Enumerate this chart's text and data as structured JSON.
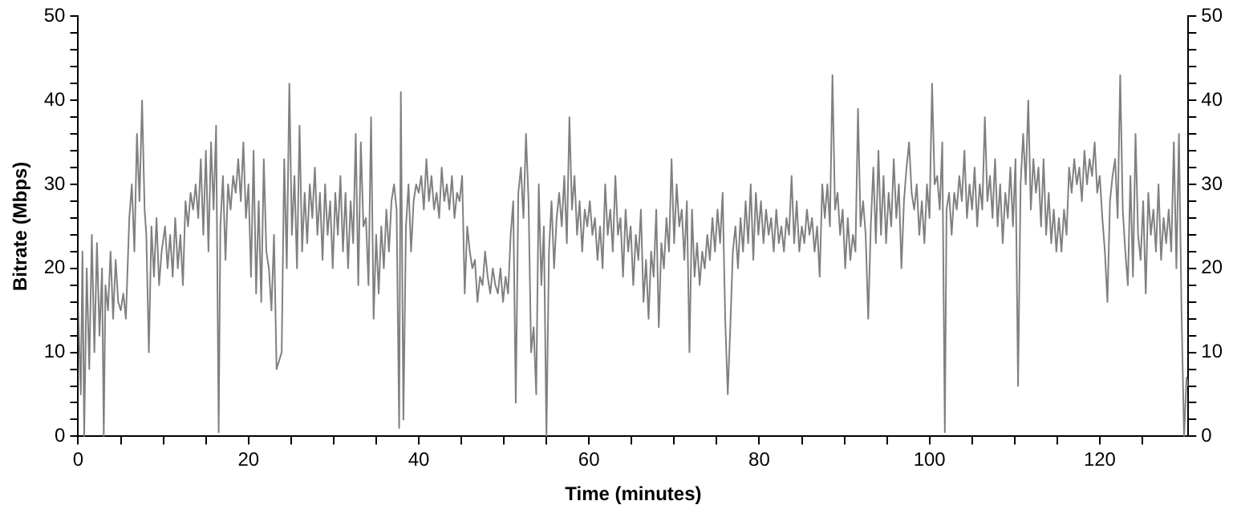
{
  "chart_data": {
    "type": "line",
    "xlabel": "Time (minutes)",
    "ylabel": "Bitrate (Mbps)",
    "xlim": [
      0,
      130.4
    ],
    "ylim": [
      0,
      50
    ],
    "y2lim": [
      0,
      50
    ],
    "xticks": [
      0,
      {
        "value": 5,
        "label": null
      },
      20,
      {
        "value": 10,
        "label": null
      },
      {
        "value": 15,
        "label": null
      },
      {
        "value": 25,
        "label": null
      },
      {
        "value": 30,
        "label": null
      },
      {
        "value": 35,
        "label": null
      },
      40,
      {
        "value": 45,
        "label": null
      },
      {
        "value": 50,
        "label": null
      },
      {
        "value": 55,
        "label": null
      },
      60,
      {
        "value": 65,
        "label": null
      },
      {
        "value": 70,
        "label": null
      },
      {
        "value": 75,
        "label": null
      },
      80,
      {
        "value": 85,
        "label": null
      },
      {
        "value": 90,
        "label": null
      },
      {
        "value": 95,
        "label": null
      },
      100,
      {
        "value": 105,
        "label": null
      },
      {
        "value": 110,
        "label": null
      },
      {
        "value": 115,
        "label": null
      },
      120,
      {
        "value": 125,
        "label": null
      }
    ],
    "yticks": [
      0,
      {
        "value": 2,
        "label": null
      },
      {
        "value": 4,
        "label": null
      },
      {
        "value": 6,
        "label": null
      },
      {
        "value": 8,
        "label": null
      },
      10,
      {
        "value": 12,
        "label": null
      },
      {
        "value": 14,
        "label": null
      },
      {
        "value": 16,
        "label": null
      },
      {
        "value": 18,
        "label": null
      },
      20,
      {
        "value": 22,
        "label": null
      },
      {
        "value": 24,
        "label": null
      },
      {
        "value": 26,
        "label": null
      },
      {
        "value": 28,
        "label": null
      },
      30,
      {
        "value": 32,
        "label": null
      },
      {
        "value": 34,
        "label": null
      },
      {
        "value": 36,
        "label": null
      },
      {
        "value": 38,
        "label": null
      },
      40,
      {
        "value": 42,
        "label": null
      },
      {
        "value": 44,
        "label": null
      },
      {
        "value": 46,
        "label": null
      },
      {
        "value": 48,
        "label": null
      },
      50
    ],
    "y2ticks": [
      0,
      {
        "value": 2,
        "label": null
      },
      {
        "value": 4,
        "label": null
      },
      {
        "value": 6,
        "label": null
      },
      {
        "value": 8,
        "label": null
      },
      10,
      {
        "value": 12,
        "label": null
      },
      {
        "value": 14,
        "label": null
      },
      {
        "value": 16,
        "label": null
      },
      {
        "value": 18,
        "label": null
      },
      20,
      {
        "value": 22,
        "label": null
      },
      {
        "value": 24,
        "label": null
      },
      {
        "value": 26,
        "label": null
      },
      {
        "value": 28,
        "label": null
      },
      30,
      {
        "value": 32,
        "label": null
      },
      {
        "value": 34,
        "label": null
      },
      {
        "value": 36,
        "label": null
      },
      {
        "value": 38,
        "label": null
      },
      40,
      {
        "value": 42,
        "label": null
      },
      {
        "value": 44,
        "label": null
      },
      {
        "value": 46,
        "label": null
      },
      {
        "value": 48,
        "label": null
      },
      50
    ],
    "grid": false,
    "legend": false,
    "marker": "none",
    "line_style": "solid",
    "series": [
      {
        "color": "#808080",
        "x": [
          0,
          0.3,
          0.5,
          0.7,
          1,
          1.3,
          1.6,
          1.9,
          2.2,
          2.5,
          2.8,
          3,
          3.2,
          3.5,
          3.8,
          4.1,
          4.4,
          4.7,
          5,
          5.3,
          5.6,
          6,
          6.3,
          6.6,
          6.9,
          7.2,
          7.5,
          7.8,
          8,
          8.3,
          8.6,
          8.9,
          9.2,
          9.5,
          9.8,
          10.2,
          10.5,
          10.8,
          11.1,
          11.4,
          11.7,
          12,
          12.3,
          12.6,
          12.9,
          13.2,
          13.5,
          13.8,
          14.1,
          14.4,
          14.7,
          15,
          15.3,
          15.6,
          15.9,
          16.2,
          16.5,
          16.7,
          17,
          17.3,
          17.6,
          17.9,
          18.2,
          18.5,
          18.8,
          19.1,
          19.4,
          19.7,
          20,
          20.3,
          20.6,
          20.9,
          21.2,
          21.5,
          21.8,
          22.1,
          22.4,
          22.7,
          23,
          23.3,
          23.6,
          23.9,
          24.2,
          24.5,
          24.8,
          25.1,
          25.4,
          25.7,
          26,
          26.3,
          26.6,
          26.9,
          27.2,
          27.5,
          27.8,
          28.1,
          28.4,
          28.7,
          29,
          29.3,
          29.6,
          29.9,
          30.2,
          30.5,
          30.8,
          31.1,
          31.4,
          31.7,
          32,
          32.3,
          32.6,
          32.9,
          33.2,
          33.5,
          33.8,
          34.1,
          34.4,
          34.7,
          35,
          35.3,
          35.6,
          35.9,
          36.2,
          36.5,
          36.8,
          37.1,
          37.4,
          37.7,
          37.9,
          38.2,
          38.5,
          38.8,
          39.1,
          39.4,
          39.7,
          40,
          40.3,
          40.6,
          40.9,
          41.2,
          41.5,
          41.8,
          42.1,
          42.4,
          42.7,
          43,
          43.3,
          43.6,
          43.9,
          44.2,
          44.5,
          44.8,
          45.1,
          45.4,
          45.7,
          46,
          46.3,
          46.6,
          46.9,
          47.2,
          47.5,
          47.8,
          48.1,
          48.4,
          48.7,
          49,
          49.3,
          49.6,
          49.9,
          50.2,
          50.5,
          50.8,
          51.1,
          51.4,
          51.7,
          52,
          52.3,
          52.6,
          52.9,
          53.2,
          53.5,
          53.8,
          54.1,
          54.4,
          54.7,
          55,
          55.3,
          55.6,
          55.9,
          56.2,
          56.5,
          56.8,
          57.1,
          57.4,
          57.7,
          58,
          58.3,
          58.6,
          58.9,
          59.2,
          59.5,
          59.8,
          60.1,
          60.4,
          60.7,
          61,
          61.3,
          61.6,
          61.9,
          62.2,
          62.5,
          62.8,
          63.1,
          63.4,
          63.7,
          64,
          64.3,
          64.6,
          64.9,
          65.2,
          65.5,
          65.8,
          66.1,
          66.4,
          66.7,
          67,
          67.3,
          67.6,
          67.9,
          68.2,
          68.5,
          68.8,
          69.1,
          69.4,
          69.7,
          70,
          70.3,
          70.6,
          70.9,
          71.2,
          71.5,
          71.8,
          72.1,
          72.4,
          72.7,
          73,
          73.3,
          73.6,
          73.9,
          74.2,
          74.5,
          74.8,
          75.1,
          75.4,
          75.7,
          76,
          76.3,
          76.6,
          76.9,
          77.2,
          77.5,
          77.8,
          78.1,
          78.4,
          78.7,
          79,
          79.3,
          79.6,
          79.9,
          80.2,
          80.5,
          80.8,
          81.1,
          81.4,
          81.7,
          82,
          82.3,
          82.6,
          82.9,
          83.2,
          83.5,
          83.8,
          84.1,
          84.4,
          84.7,
          85,
          85.3,
          85.6,
          85.9,
          86.2,
          86.5,
          86.8,
          87.1,
          87.4,
          87.7,
          88,
          88.3,
          88.6,
          88.9,
          89.2,
          89.5,
          89.8,
          90.1,
          90.4,
          90.7,
          91,
          91.3,
          91.6,
          91.9,
          92.2,
          92.5,
          92.8,
          93.1,
          93.4,
          93.7,
          94,
          94.3,
          94.6,
          94.9,
          95.2,
          95.5,
          95.8,
          96.1,
          96.4,
          96.7,
          97,
          97.3,
          97.6,
          97.9,
          98.2,
          98.5,
          98.8,
          99.1,
          99.4,
          99.7,
          100,
          100.3,
          100.6,
          100.9,
          101.2,
          101.5,
          101.8,
          102,
          102.3,
          102.6,
          102.9,
          103.2,
          103.5,
          103.8,
          104.1,
          104.4,
          104.7,
          105,
          105.3,
          105.6,
          105.9,
          106.2,
          106.5,
          106.8,
          107.1,
          107.4,
          107.7,
          108,
          108.3,
          108.6,
          108.9,
          109.2,
          109.5,
          109.8,
          110.1,
          110.4,
          110.7,
          111,
          111.3,
          111.6,
          111.9,
          112.2,
          112.5,
          112.8,
          113.1,
          113.4,
          113.7,
          114,
          114.3,
          114.6,
          114.9,
          115.2,
          115.5,
          115.8,
          116.1,
          116.4,
          116.7,
          117,
          117.3,
          117.6,
          117.9,
          118.2,
          118.5,
          118.8,
          119.1,
          119.4,
          119.7,
          120,
          120.3,
          120.6,
          120.9,
          121.2,
          121.5,
          121.8,
          122.1,
          122.4,
          122.7,
          123,
          123.3,
          123.6,
          123.9,
          124.2,
          124.5,
          124.8,
          125.1,
          125.4,
          125.7,
          126,
          126.3,
          126.6,
          126.9,
          127.2,
          127.5,
          127.8,
          128.1,
          128.4,
          128.7,
          129,
          129.3,
          129.6,
          129.9,
          130.2,
          130.4
        ],
        "values": [
          15,
          5,
          22,
          0,
          20,
          8,
          24,
          10,
          23,
          12,
          20,
          0,
          18,
          15,
          22,
          14,
          21,
          16,
          15,
          17,
          14,
          26,
          30,
          22,
          36,
          28,
          40,
          27,
          24,
          10,
          25,
          19,
          26,
          18,
          22,
          25,
          20,
          24,
          19,
          26,
          20,
          24,
          18,
          28,
          25,
          29,
          27,
          30,
          26,
          33,
          24,
          34,
          22,
          35,
          27,
          37,
          0.5,
          25,
          31,
          21,
          30,
          27,
          31,
          29,
          33,
          28,
          35,
          26,
          30,
          19,
          34,
          17,
          28,
          16,
          33,
          22,
          20,
          15,
          24,
          8,
          9,
          10,
          33,
          20,
          42,
          24,
          31,
          20,
          37,
          22,
          29,
          23,
          30,
          26,
          32,
          24,
          29,
          21,
          30,
          24,
          28,
          20,
          29,
          24,
          31,
          22,
          29,
          20,
          28,
          23,
          36,
          18,
          35,
          25,
          26,
          18,
          38,
          14,
          24,
          17,
          25,
          20,
          27,
          22,
          28,
          30,
          27,
          1,
          41,
          2,
          25,
          30,
          22,
          28,
          30,
          29,
          31,
          27,
          33,
          28,
          31,
          27,
          29,
          26,
          32,
          28,
          30,
          27,
          31,
          26,
          29,
          28,
          31,
          17,
          25,
          22,
          20,
          21,
          16,
          19,
          18,
          22,
          19,
          17,
          20,
          18,
          17,
          20,
          16,
          19,
          17,
          24,
          28,
          4,
          29,
          32,
          26,
          36,
          28,
          10,
          13,
          5,
          30,
          18,
          25,
          0,
          22,
          28,
          20,
          26,
          29,
          25,
          31,
          23,
          38,
          27,
          31,
          24,
          28,
          22,
          27,
          25,
          28,
          24,
          26,
          21,
          25,
          20,
          30,
          24,
          27,
          22,
          31,
          24,
          26,
          19,
          27,
          22,
          25,
          18,
          24,
          21,
          27,
          16,
          21,
          14,
          22,
          19,
          27,
          13,
          23,
          20,
          26,
          22,
          33,
          23,
          30,
          25,
          27,
          21,
          28,
          10,
          27,
          19,
          23,
          18,
          22,
          20,
          24,
          21,
          26,
          22,
          27,
          23,
          29,
          14,
          5,
          13,
          22,
          25,
          20,
          26,
          22,
          28,
          23,
          30,
          21,
          29,
          24,
          28,
          23,
          27,
          24,
          26,
          22,
          27,
          23,
          25,
          22,
          26,
          24,
          31,
          23,
          28,
          22,
          25,
          23,
          27,
          24,
          26,
          22,
          25,
          19,
          30,
          26,
          30,
          25,
          43,
          27,
          29,
          24,
          27,
          20,
          26,
          21,
          24,
          22,
          39,
          25,
          28,
          24,
          14,
          25,
          32,
          23,
          34,
          24,
          31,
          23,
          29,
          25,
          33,
          26,
          30,
          20,
          28,
          32,
          35,
          29,
          27,
          30,
          24,
          28,
          23,
          30,
          26,
          42,
          30,
          31,
          27,
          35,
          0.5,
          27,
          29,
          24,
          29,
          27,
          31,
          28,
          34,
          26,
          30,
          27,
          32,
          25,
          30,
          27,
          38,
          28,
          31,
          26,
          33,
          25,
          30,
          23,
          29,
          26,
          32,
          25,
          33,
          6,
          30,
          36,
          30,
          40,
          27,
          33,
          29,
          32,
          25,
          33,
          24,
          29,
          23,
          27,
          22,
          26,
          22,
          27,
          24,
          32,
          29,
          33,
          30,
          32,
          28,
          34,
          30,
          33,
          31,
          35,
          29,
          31,
          26,
          22,
          16,
          28,
          31,
          33,
          26,
          43,
          27,
          22,
          18,
          31,
          19,
          36,
          24,
          21,
          28,
          17,
          29,
          24,
          27,
          22,
          30,
          21,
          26,
          23,
          27,
          22,
          35,
          20,
          36,
          15,
          0,
          7,
          6
        ]
      }
    ]
  }
}
